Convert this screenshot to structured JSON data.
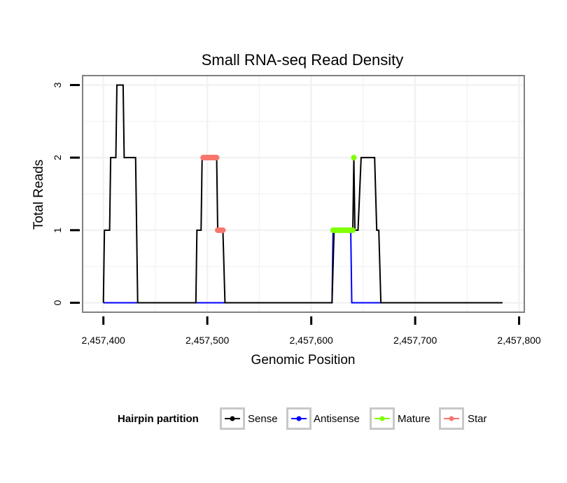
{
  "chart_data": {
    "type": "line",
    "title": "Small RNA-seq Read Density",
    "xlabel": "Genomic Position",
    "ylabel": "Total Reads",
    "xlim": [
      2457380,
      2457805
    ],
    "ylim": [
      -0.13,
      3.13
    ],
    "x_ticks": [
      {
        "value": 2457400,
        "label": "2,457,400"
      },
      {
        "value": 2457500,
        "label": "2,457,500"
      },
      {
        "value": 2457600,
        "label": "2,457,600"
      },
      {
        "value": 2457700,
        "label": "2,457,700"
      },
      {
        "value": 2457800,
        "label": "2,457,800"
      }
    ],
    "y_ticks": [
      {
        "value": 0,
        "label": "0"
      },
      {
        "value": 1,
        "label": "1"
      },
      {
        "value": 2,
        "label": "2"
      },
      {
        "value": 3,
        "label": "3"
      }
    ],
    "grid": true,
    "legend": {
      "title": "Hairpin partition",
      "position": "bottom",
      "entries": [
        {
          "name": "Sense",
          "color": "#000000"
        },
        {
          "name": "Antisense",
          "color": "#0000ff"
        },
        {
          "name": "Mature",
          "color": "#7fff00"
        },
        {
          "name": "Star",
          "color": "#f8766d"
        }
      ]
    },
    "series": [
      {
        "name": "Antisense",
        "color": "#0000ff",
        "points": [
          [
            2457400,
            0
          ],
          [
            2457620,
            0
          ],
          [
            2457621,
            1
          ],
          [
            2457638,
            1
          ],
          [
            2457639,
            0
          ],
          [
            2457784,
            0
          ]
        ]
      },
      {
        "name": "Sense",
        "color": "#000000",
        "points": [
          [
            2457400,
            0
          ],
          [
            2457401,
            1
          ],
          [
            2457406,
            1
          ],
          [
            2457407,
            2
          ],
          [
            2457412,
            2
          ],
          [
            2457413,
            3
          ],
          [
            2457419,
            3
          ],
          [
            2457420,
            2
          ],
          [
            2457431,
            2
          ],
          [
            2457433,
            0
          ],
          [
            2457489,
            0
          ],
          [
            2457490,
            1
          ],
          [
            2457494,
            1
          ],
          [
            2457495,
            2
          ],
          [
            2457509,
            2
          ],
          [
            2457510,
            1
          ],
          [
            2457515,
            1
          ],
          [
            2457517,
            0
          ],
          [
            2457620,
            0
          ],
          [
            2457622,
            1
          ],
          [
            2457640,
            1
          ],
          [
            2457641,
            2
          ],
          [
            2457642,
            1
          ],
          [
            2457645,
            1
          ],
          [
            2457648,
            2
          ],
          [
            2457661,
            2
          ],
          [
            2457663,
            1
          ],
          [
            2457665,
            1
          ],
          [
            2457667,
            0
          ],
          [
            2457784,
            0
          ]
        ]
      }
    ],
    "point_series": [
      {
        "name": "Star",
        "color": "#f8766d",
        "points": [
          [
            2457496,
            2
          ],
          [
            2457497,
            2
          ],
          [
            2457498,
            2
          ],
          [
            2457499,
            2
          ],
          [
            2457500,
            2
          ],
          [
            2457501,
            2
          ],
          [
            2457502,
            2
          ],
          [
            2457503,
            2
          ],
          [
            2457504,
            2
          ],
          [
            2457505,
            2
          ],
          [
            2457506,
            2
          ],
          [
            2457507,
            2
          ],
          [
            2457508,
            2
          ],
          [
            2457509,
            2
          ],
          [
            2457510,
            1
          ],
          [
            2457511,
            1
          ],
          [
            2457512,
            1
          ],
          [
            2457513,
            1
          ],
          [
            2457514,
            1
          ],
          [
            2457515,
            1
          ]
        ]
      },
      {
        "name": "Mature",
        "color": "#7fff00",
        "points": [
          [
            2457621,
            1
          ],
          [
            2457622,
            1
          ],
          [
            2457623,
            1
          ],
          [
            2457624,
            1
          ],
          [
            2457625,
            1
          ],
          [
            2457626,
            1
          ],
          [
            2457627,
            1
          ],
          [
            2457628,
            1
          ],
          [
            2457629,
            1
          ],
          [
            2457630,
            1
          ],
          [
            2457631,
            1
          ],
          [
            2457632,
            1
          ],
          [
            2457633,
            1
          ],
          [
            2457634,
            1
          ],
          [
            2457635,
            1
          ],
          [
            2457636,
            1
          ],
          [
            2457637,
            1
          ],
          [
            2457638,
            1
          ],
          [
            2457639,
            1
          ],
          [
            2457640,
            1
          ],
          [
            2457641,
            2
          ]
        ]
      }
    ]
  }
}
